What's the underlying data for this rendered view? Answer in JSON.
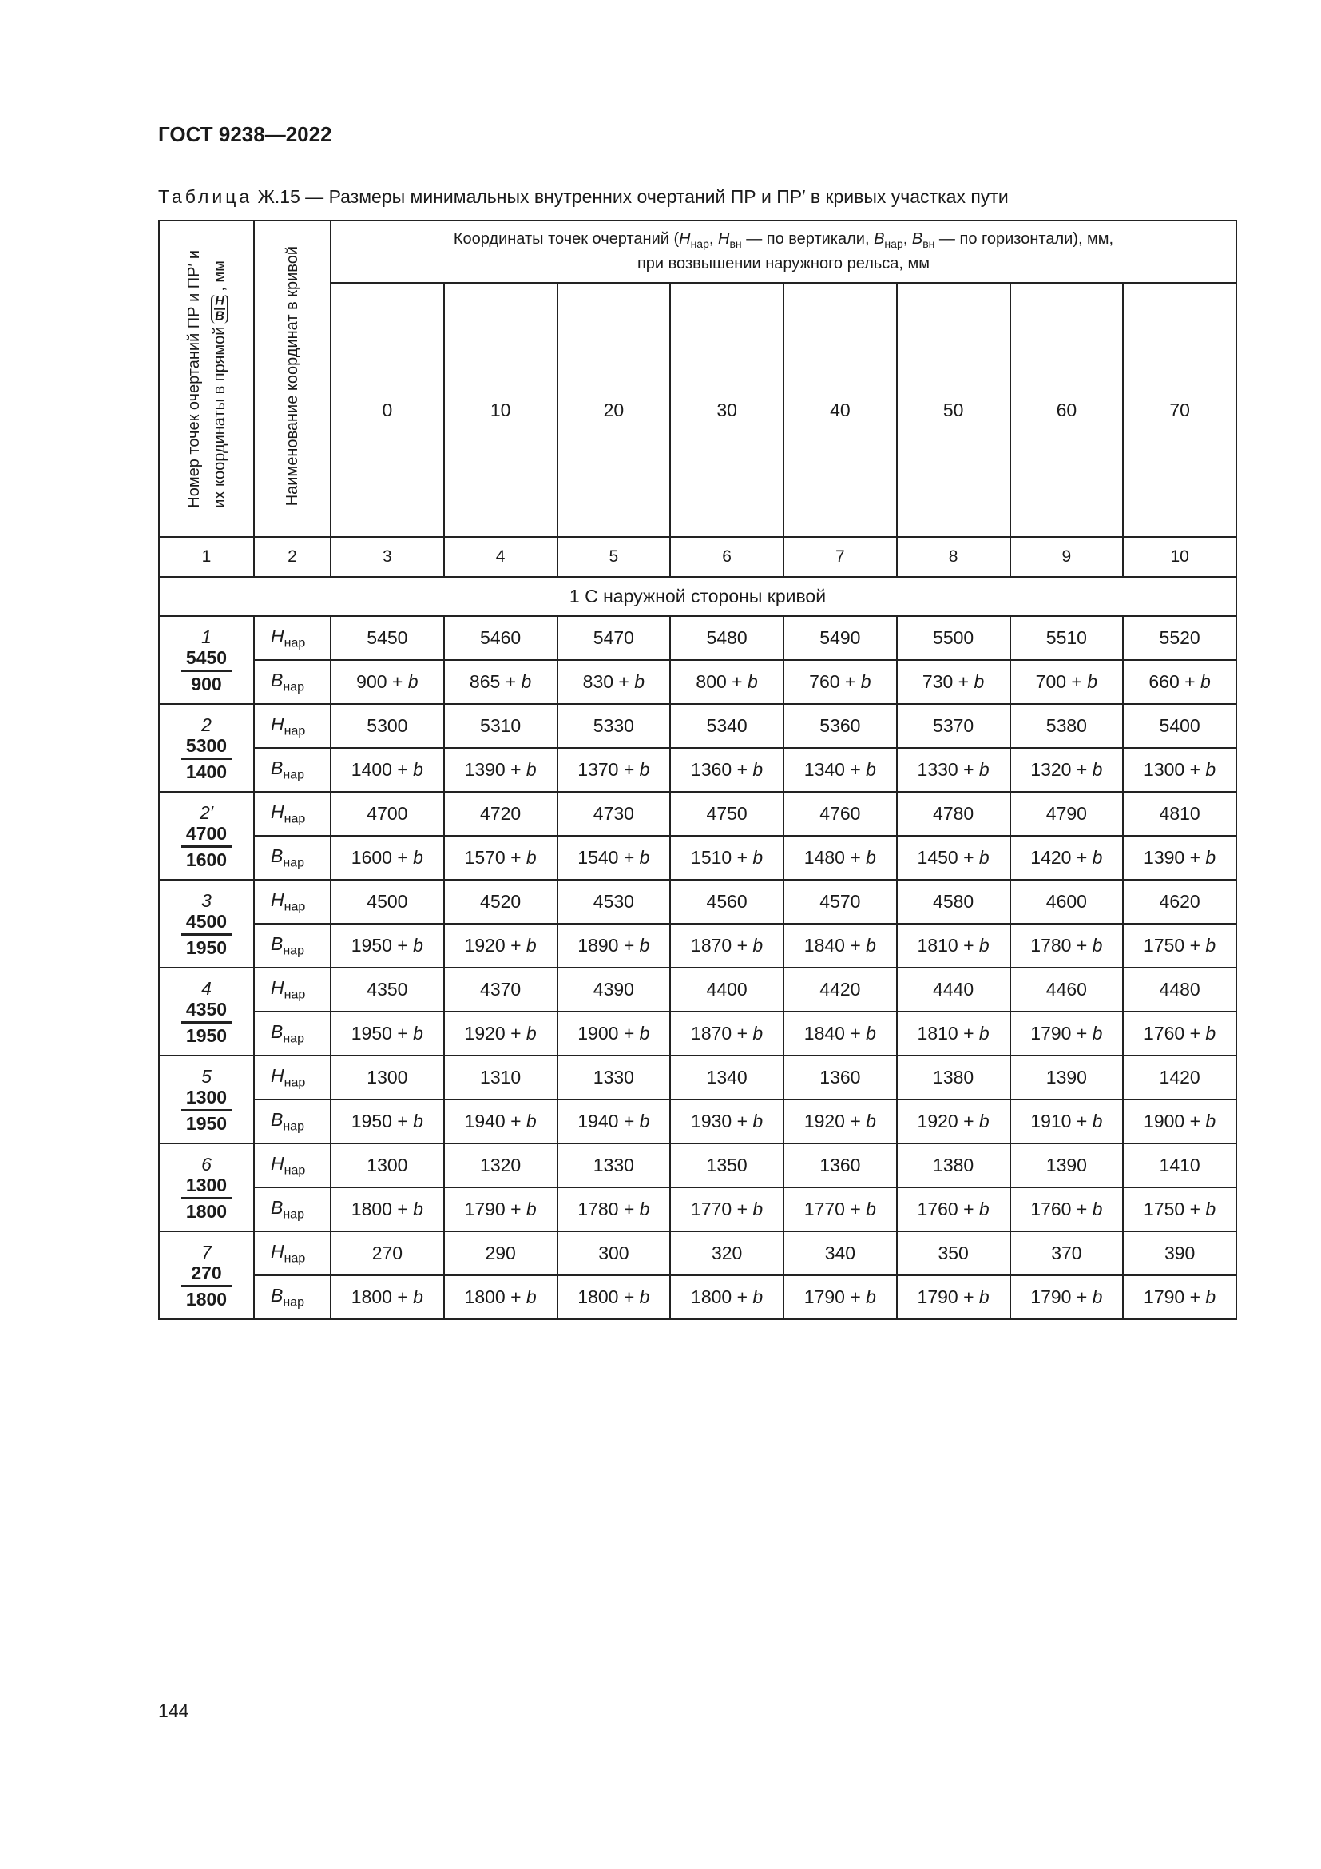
{
  "header": {
    "doc_title": "ГОСТ 9238—2022"
  },
  "caption": {
    "prefix": "Таблица",
    "text": " Ж.15 — Размеры минимальных внутренних очертаний ПР и ПР′ в кривых участках пути"
  },
  "table": {
    "col1_header": {
      "line1": "Номер точек очертаний ПР и ПР′ и",
      "line2": "их координаты в прямой",
      "frac_num": "H",
      "frac_den": "B",
      "unit": ", мм"
    },
    "col2_header": "Наименование координат в кривой",
    "group_header": {
      "p1": "Координаты точек очертаний (",
      "h": "H",
      "s1": "нар",
      "p2": ", ",
      "h2": "H",
      "s2": "вн",
      "p3": " — по вертикали, ",
      "b": "B",
      "s3": "нар",
      "p4": ", ",
      "b2": "B",
      "s4": "вн",
      "p5": " — по горизонтали), мм,",
      "line2": "при возвышении наружного рельса, мм"
    },
    "elevations": [
      "0",
      "10",
      "20",
      "30",
      "40",
      "50",
      "60",
      "70"
    ],
    "column_numbers": [
      "1",
      "2",
      "3",
      "4",
      "5",
      "6",
      "7",
      "8",
      "9",
      "10"
    ],
    "section_title": "1 С наружной стороны кривой",
    "coord_labels": {
      "h": "H",
      "b": "B",
      "sub": "нар"
    },
    "b_suffix": "b",
    "points": [
      {
        "num": "1",
        "H": "5450",
        "B": "900",
        "h_values": [
          "5450",
          "5460",
          "5470",
          "5480",
          "5490",
          "5500",
          "5510",
          "5520"
        ],
        "b_values": [
          "900",
          "865",
          "830",
          "800",
          "760",
          "730",
          "700",
          "660"
        ]
      },
      {
        "num": "2",
        "H": "5300",
        "B": "1400",
        "h_values": [
          "5300",
          "5310",
          "5330",
          "5340",
          "5360",
          "5370",
          "5380",
          "5400"
        ],
        "b_values": [
          "1400",
          "1390",
          "1370",
          "1360",
          "1340",
          "1330",
          "1320",
          "1300"
        ]
      },
      {
        "num": "2′",
        "H": "4700",
        "B": "1600",
        "h_values": [
          "4700",
          "4720",
          "4730",
          "4750",
          "4760",
          "4780",
          "4790",
          "4810"
        ],
        "b_values": [
          "1600",
          "1570",
          "1540",
          "1510",
          "1480",
          "1450",
          "1420",
          "1390"
        ]
      },
      {
        "num": "3",
        "H": "4500",
        "B": "1950",
        "h_values": [
          "4500",
          "4520",
          "4530",
          "4560",
          "4570",
          "4580",
          "4600",
          "4620"
        ],
        "b_values": [
          "1950",
          "1920",
          "1890",
          "1870",
          "1840",
          "1810",
          "1780",
          "1750"
        ]
      },
      {
        "num": "4",
        "H": "4350",
        "B": "1950",
        "h_values": [
          "4350",
          "4370",
          "4390",
          "4400",
          "4420",
          "4440",
          "4460",
          "4480"
        ],
        "b_values": [
          "1950",
          "1920",
          "1900",
          "1870",
          "1840",
          "1810",
          "1790",
          "1760"
        ]
      },
      {
        "num": "5",
        "H": "1300",
        "B": "1950",
        "h_values": [
          "1300",
          "1310",
          "1330",
          "1340",
          "1360",
          "1380",
          "1390",
          "1420"
        ],
        "b_values": [
          "1950",
          "1940",
          "1940",
          "1930",
          "1920",
          "1920",
          "1910",
          "1900"
        ]
      },
      {
        "num": "6",
        "H": "1300",
        "B": "1800",
        "h_values": [
          "1300",
          "1320",
          "1330",
          "1350",
          "1360",
          "1380",
          "1390",
          "1410"
        ],
        "b_values": [
          "1800",
          "1790",
          "1780",
          "1770",
          "1770",
          "1760",
          "1760",
          "1750"
        ]
      },
      {
        "num": "7",
        "H": "270",
        "B": "1800",
        "h_values": [
          "270",
          "290",
          "300",
          "320",
          "340",
          "350",
          "370",
          "390"
        ],
        "b_values": [
          "1800",
          "1800",
          "1800",
          "1800",
          "1790",
          "1790",
          "1790",
          "1790"
        ]
      }
    ]
  },
  "footer": {
    "page_number": "144"
  }
}
